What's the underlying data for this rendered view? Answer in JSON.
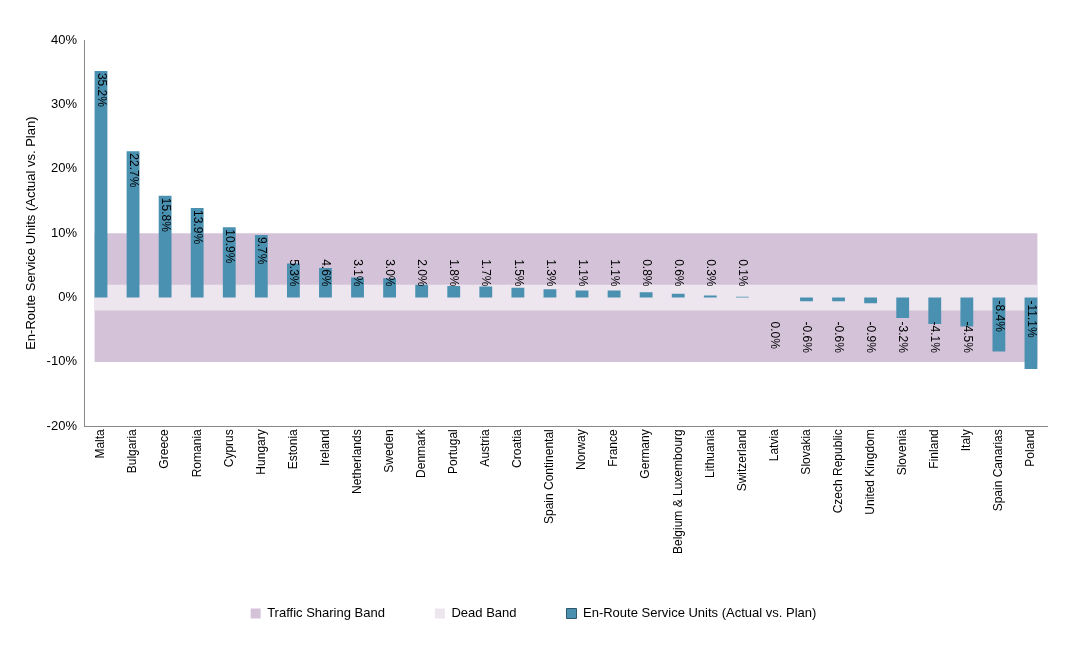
{
  "chart_data": {
    "type": "bar",
    "ylabel": "En-Route Service Units (Actual vs. Plan)",
    "categories": [
      "Malta",
      "Bulgaria",
      "Greece",
      "Romania",
      "Cyprus",
      "Hungary",
      "Estonia",
      "Ireland",
      "Netherlands",
      "Sweden",
      "Denmark",
      "Portugal",
      "Austria",
      "Croatia",
      "Spain Continental",
      "Norway",
      "France",
      "Germany",
      "Belgium & Luxembourg",
      "Lithuania",
      "Switzerland",
      "Latvia",
      "Slovakia",
      "Czech Republic",
      "United Kingdom",
      "Slovenia",
      "Finland",
      "Italy",
      "Spain Canarias",
      "Poland"
    ],
    "series": [
      {
        "name": "En-Route Service Units (Actual vs. Plan)",
        "color": "#4a90b0",
        "values": [
          35.2,
          22.7,
          15.8,
          13.9,
          10.9,
          9.7,
          5.3,
          4.6,
          3.1,
          3.0,
          2.0,
          1.8,
          1.7,
          1.5,
          1.3,
          1.1,
          1.1,
          0.8,
          0.6,
          0.3,
          0.1,
          0.0,
          -0.6,
          -0.6,
          -0.9,
          -3.2,
          -4.1,
          -4.5,
          -8.4,
          -11.1
        ],
        "value_labels": [
          "35.2%",
          "22.7%",
          "15.8%",
          "13.9%",
          "10.9%",
          "9.7%",
          "5.3%",
          "4.6%",
          "3.1%",
          "3.0%",
          "2.0%",
          "1.8%",
          "1.7%",
          "1.5%",
          "1.3%",
          "1.1%",
          "1.1%",
          "0.8%",
          "0.6%",
          "0.3%",
          "0.1%",
          "0.0%",
          "-0.6%",
          "-0.6%",
          "-0.9%",
          "-3.2%",
          "-4.1%",
          "-4.5%",
          "-8.4%",
          "-11.1%"
        ]
      }
    ],
    "bands": [
      {
        "axis": "y",
        "from": -10,
        "to": 10,
        "label": "Traffic Sharing Band",
        "color": "#d4c3d8"
      },
      {
        "axis": "y",
        "from": -2,
        "to": 2,
        "label": "Dead Band",
        "color": "#ede6ee"
      }
    ],
    "ylim": [
      -20,
      40
    ],
    "yticks": [
      {
        "value": -20,
        "label": "-20%"
      },
      {
        "value": -10,
        "label": "-10%"
      },
      {
        "value": 0,
        "label": "0%"
      },
      {
        "value": 10,
        "label": "10%"
      },
      {
        "value": 20,
        "label": "20%"
      },
      {
        "value": 30,
        "label": "30%"
      },
      {
        "value": 40,
        "label": "40%"
      }
    ],
    "grid": false,
    "legend": "bottom"
  }
}
